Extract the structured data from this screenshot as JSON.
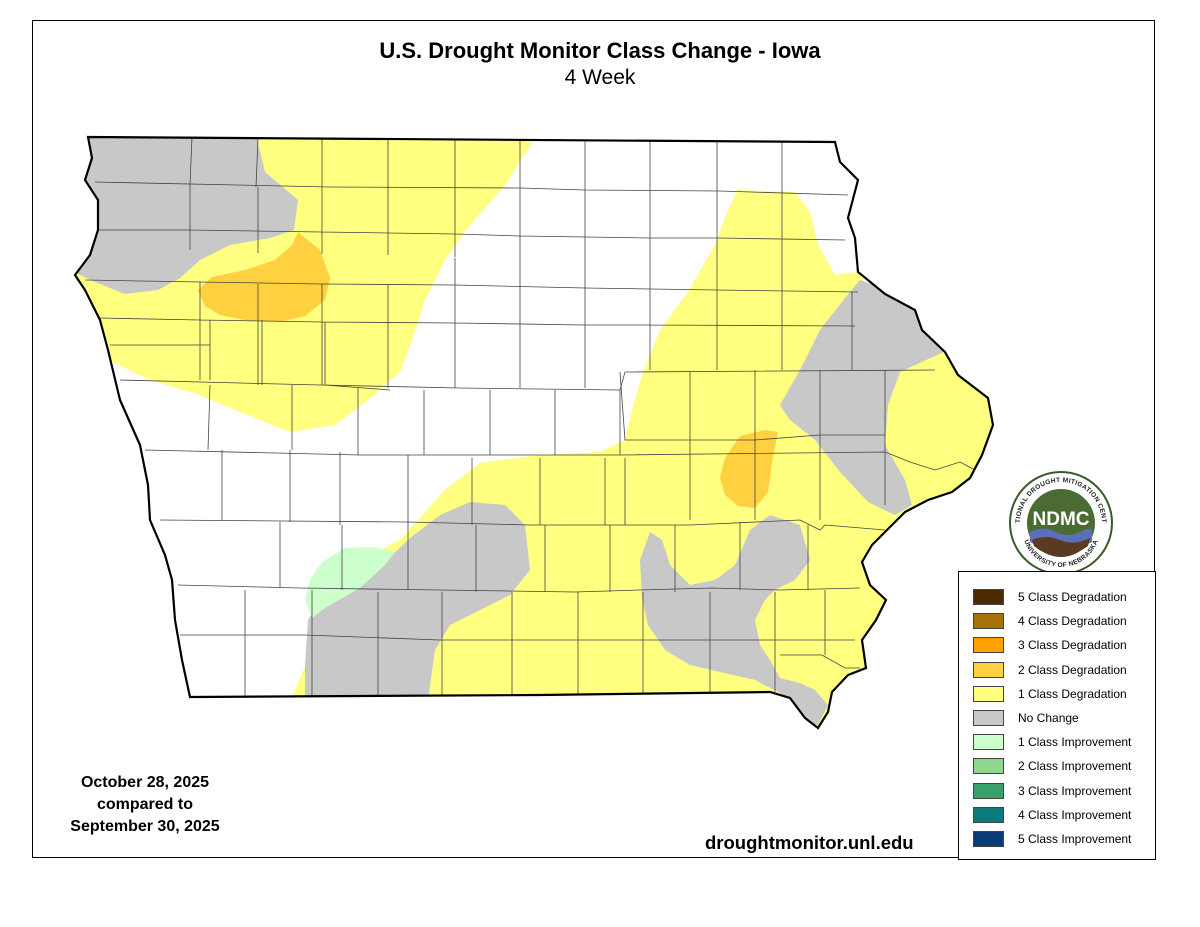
{
  "title": "U.S. Drought Monitor Class Change - Iowa",
  "subtitle": "4 Week",
  "dates": {
    "line1": "October 28, 2025",
    "line2": "compared to",
    "line3": "September 30, 2025"
  },
  "website": "droughtmonitor.unl.edu",
  "logo": {
    "center_text": "NDMC",
    "ring_text_top": "NATIONAL DROUGHT MITIGATION CENTER",
    "ring_text_bottom": "UNIVERSITY OF NEBRASKA"
  },
  "colors": {
    "one_class_degradation": "#ffff80",
    "two_class_degradation": "#ffd040",
    "no_change": "#c8c8c8",
    "one_class_improvement": "#ccffcc",
    "background": "#ffffff"
  },
  "legend": [
    {
      "label": "5 Class Degradation",
      "color": "#4d2a00"
    },
    {
      "label": "4 Class Degradation",
      "color": "#a8720a"
    },
    {
      "label": "3 Class Degradation",
      "color": "#ff9f00"
    },
    {
      "label": "2 Class Degradation",
      "color": "#ffd040"
    },
    {
      "label": "1 Class Degradation",
      "color": "#ffff80"
    },
    {
      "label": "No Change",
      "color": "#c8c8c8"
    },
    {
      "label": "1 Class Improvement",
      "color": "#ccffcc"
    },
    {
      "label": "2 Class Improvement",
      "color": "#8fd68f"
    },
    {
      "label": "3 Class Improvement",
      "color": "#38a06a"
    },
    {
      "label": "4 Class Improvement",
      "color": "#0a7a7a"
    },
    {
      "label": "5 Class Improvement",
      "color": "#0a3a78"
    }
  ]
}
